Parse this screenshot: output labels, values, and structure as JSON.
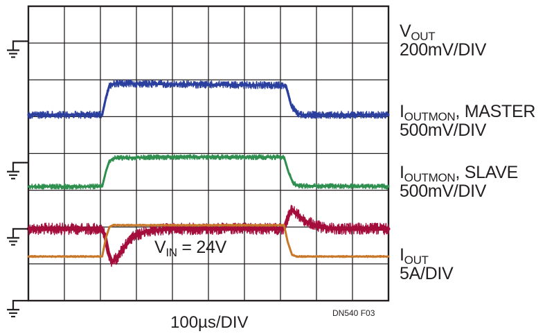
{
  "chart_data": {
    "type": "line",
    "title": "",
    "xlabel": "100µs/DIV",
    "ylabel": "",
    "grid": true,
    "divisions": {
      "x": 10,
      "y": 8
    },
    "x_unit": "µs",
    "xlim": [
      0,
      1000
    ],
    "annotation": {
      "main": "V",
      "sub": "IN",
      "suffix": " = 24V"
    },
    "figure_id": "DN540 F03",
    "series": [
      {
        "id": "vout",
        "label_main": "V",
        "label_sub": "OUT",
        "label_suffix": "",
        "scale": "200mV/DIV",
        "color": "#a50d3c",
        "ground_div": 1.95,
        "noise_div": 0.16,
        "points": [
          [
            0,
            1.95
          ],
          [
            200,
            1.95
          ],
          [
            212,
            1.8
          ],
          [
            222,
            1.3
          ],
          [
            232,
            1.05
          ],
          [
            245,
            1.15
          ],
          [
            265,
            1.45
          ],
          [
            290,
            1.72
          ],
          [
            330,
            1.9
          ],
          [
            400,
            1.95
          ],
          [
            710,
            1.95
          ],
          [
            722,
            2.3
          ],
          [
            732,
            2.48
          ],
          [
            745,
            2.35
          ],
          [
            770,
            2.15
          ],
          [
            810,
            2.0
          ],
          [
            860,
            1.95
          ],
          [
            1000,
            1.95
          ]
        ]
      },
      {
        "id": "ioutmon-master",
        "label_main": "I",
        "label_sub": "OUTMON",
        "label_suffix": ", MASTER",
        "scale": "500mV/DIV",
        "color": "#2b3f9e",
        "ground_div": 5.05,
        "noise_div": 0.1,
        "points": [
          [
            0,
            5.05
          ],
          [
            205,
            5.05
          ],
          [
            215,
            5.5
          ],
          [
            225,
            5.85
          ],
          [
            240,
            5.9
          ],
          [
            400,
            5.88
          ],
          [
            715,
            5.85
          ],
          [
            730,
            5.3
          ],
          [
            745,
            5.1
          ],
          [
            760,
            5.05
          ],
          [
            1000,
            5.05
          ]
        ]
      },
      {
        "id": "ioutmon-slave",
        "label_main": "I",
        "label_sub": "OUTMON",
        "label_suffix": ", SLAVE",
        "scale": "500mV/DIV",
        "color": "#2e8f4f",
        "ground_div": 3.1,
        "noise_div": 0.07,
        "points": [
          [
            0,
            3.1
          ],
          [
            205,
            3.1
          ],
          [
            215,
            3.5
          ],
          [
            225,
            3.8
          ],
          [
            240,
            3.88
          ],
          [
            400,
            3.9
          ],
          [
            710,
            3.9
          ],
          [
            722,
            3.5
          ],
          [
            735,
            3.2
          ],
          [
            750,
            3.12
          ],
          [
            1000,
            3.1
          ]
        ]
      },
      {
        "id": "iout",
        "label_main": "I",
        "label_sub": "OUT",
        "label_suffix": "",
        "scale": "5A/DIV",
        "color": "#c8782a",
        "ground_div": 1.2,
        "noise_div": 0.03,
        "points": [
          [
            0,
            1.2
          ],
          [
            205,
            1.2
          ],
          [
            215,
            1.7
          ],
          [
            225,
            2.0
          ],
          [
            235,
            2.05
          ],
          [
            710,
            2.05
          ],
          [
            720,
            1.6
          ],
          [
            732,
            1.25
          ],
          [
            745,
            1.2
          ],
          [
            1000,
            1.2
          ]
        ]
      }
    ],
    "ground_markers": [
      {
        "name": "vout-ground-marker",
        "level_div": 7.05
      },
      {
        "name": "slave-ground-marker",
        "level_div": 3.75
      },
      {
        "name": "iout-ground-marker",
        "level_div": 1.95
      },
      {
        "name": "bottom-ground-marker",
        "level_div": 0.0
      }
    ]
  }
}
